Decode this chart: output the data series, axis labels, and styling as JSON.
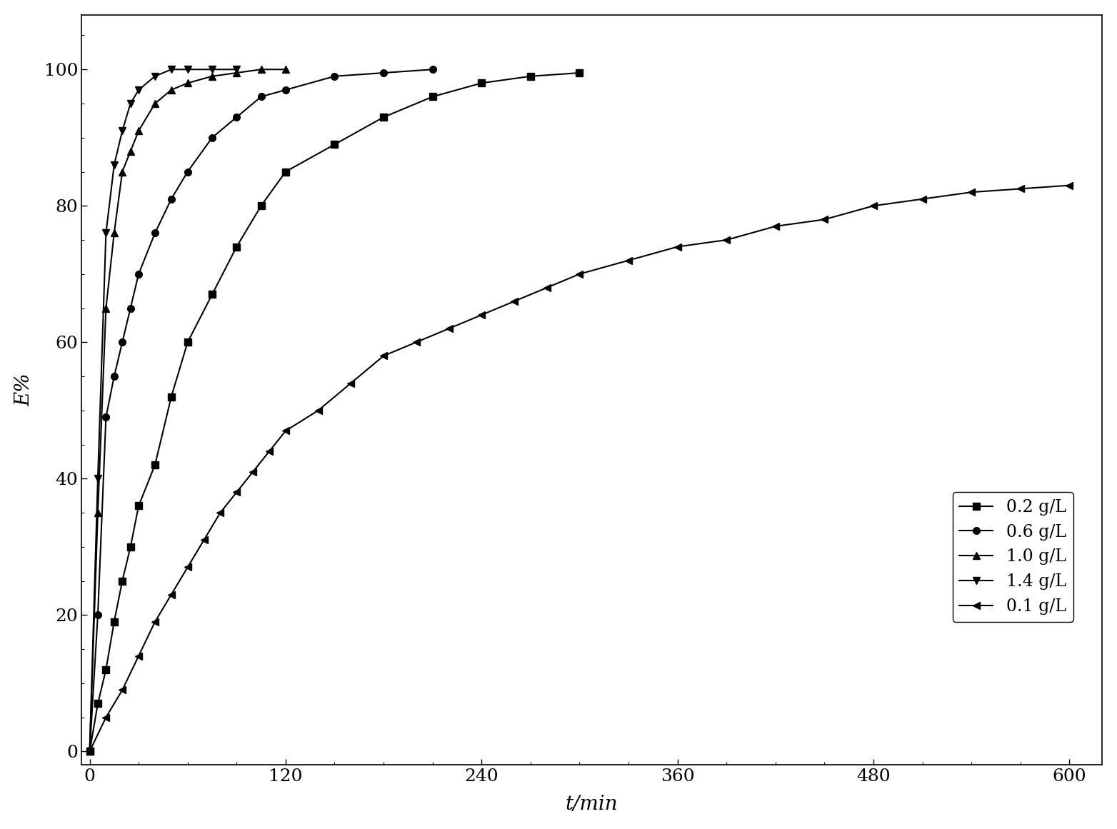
{
  "series": [
    {
      "label": "0.2 g/L",
      "marker": "s",
      "t": [
        0,
        5,
        10,
        15,
        20,
        25,
        30,
        40,
        50,
        60,
        75,
        90,
        105,
        120,
        150,
        180,
        210,
        240,
        270,
        300
      ],
      "E": [
        0,
        7,
        12,
        19,
        25,
        30,
        36,
        42,
        52,
        60,
        67,
        74,
        80,
        85,
        89,
        93,
        96,
        98,
        99,
        99.5
      ]
    },
    {
      "label": "0.6 g/L",
      "marker": "o",
      "t": [
        0,
        5,
        10,
        15,
        20,
        25,
        30,
        40,
        50,
        60,
        75,
        90,
        105,
        120,
        150,
        180,
        210
      ],
      "E": [
        0,
        20,
        49,
        55,
        60,
        65,
        70,
        76,
        81,
        85,
        90,
        93,
        96,
        97,
        99,
        99.5,
        100
      ]
    },
    {
      "label": "1.0 g/L",
      "marker": "^",
      "t": [
        0,
        5,
        10,
        15,
        20,
        25,
        30,
        40,
        50,
        60,
        75,
        90,
        105,
        120
      ],
      "E": [
        0,
        35,
        65,
        76,
        85,
        88,
        91,
        95,
        97,
        98,
        99,
        99.5,
        100,
        100
      ]
    },
    {
      "label": "1.4 g/L",
      "marker": "v",
      "t": [
        0,
        5,
        10,
        15,
        20,
        25,
        30,
        40,
        50,
        60,
        75,
        90
      ],
      "E": [
        0,
        40,
        76,
        86,
        91,
        95,
        97,
        99,
        100,
        100,
        100,
        100
      ]
    },
    {
      "label": "0.1 g/L",
      "marker": "<",
      "t": [
        0,
        10,
        20,
        30,
        40,
        50,
        60,
        70,
        80,
        90,
        100,
        110,
        120,
        140,
        160,
        180,
        200,
        220,
        240,
        260,
        280,
        300,
        330,
        360,
        390,
        420,
        450,
        480,
        510,
        540,
        570,
        600
      ],
      "E": [
        0,
        5,
        9,
        14,
        19,
        23,
        27,
        31,
        35,
        38,
        41,
        44,
        47,
        50,
        54,
        58,
        60,
        62,
        64,
        66,
        68,
        70,
        72,
        74,
        75,
        77,
        78,
        80,
        81,
        82,
        82.5,
        83
      ]
    }
  ],
  "xlabel": "t/min",
  "ylabel": "E%",
  "xlim": [
    -5,
    620
  ],
  "ylim": [
    -2,
    108
  ],
  "xticks": [
    0,
    120,
    240,
    360,
    480,
    600
  ],
  "yticks": [
    0,
    20,
    40,
    60,
    80,
    100
  ],
  "marker_size": 7,
  "line_width": 1.5,
  "color": "black",
  "background_color": "#ffffff",
  "font_size_label": 20,
  "font_size_tick": 18,
  "font_size_legend": 17
}
